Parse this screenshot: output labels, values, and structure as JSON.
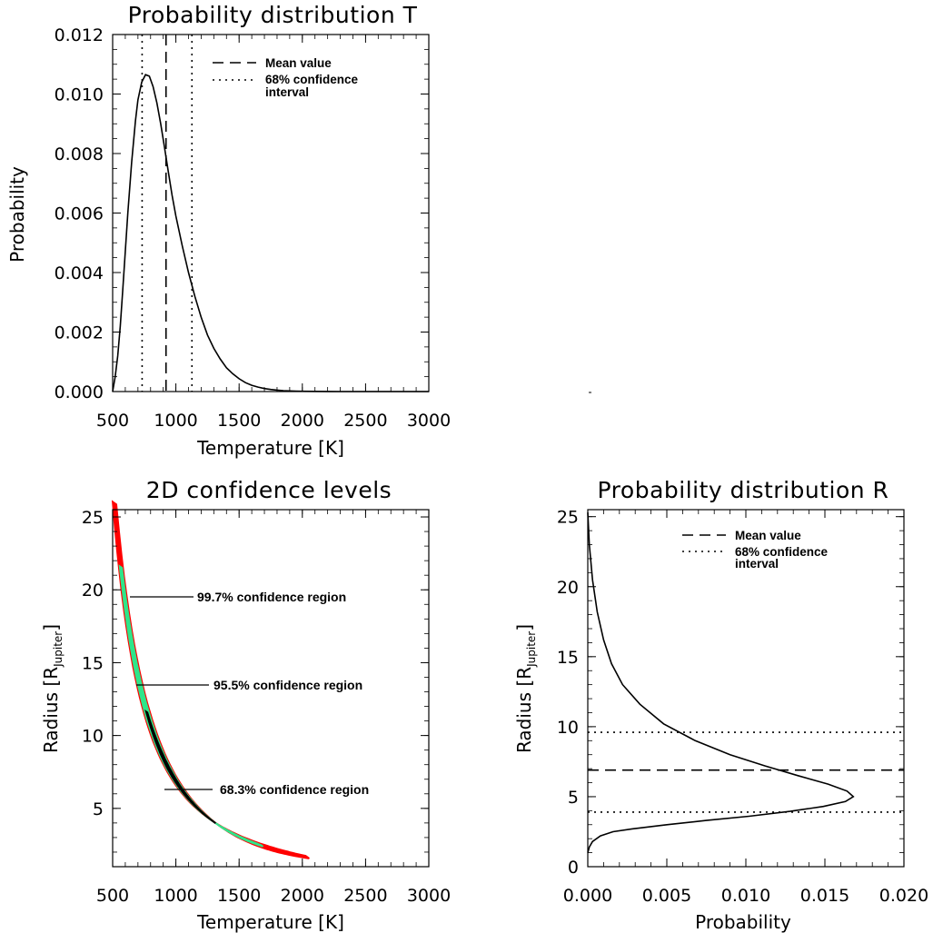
{
  "chart_data": [
    {
      "type": "line",
      "title": "Probability distribution T",
      "xlabel": "Temperature [K]",
      "ylabel": "Probability",
      "xlim": [
        500,
        3000
      ],
      "ylim": [
        0,
        0.012
      ],
      "xticks": [
        "500",
        "1000",
        "1500",
        "2000",
        "2500",
        "3000"
      ],
      "yticks": [
        "0.000",
        "0.002",
        "0.004",
        "0.006",
        "0.008",
        "0.010",
        "0.012"
      ],
      "legend": {
        "position": "top-right",
        "mean_label": "Mean value",
        "ci_label_line1": "68% confidence",
        "ci_label_line2": "interval"
      },
      "series": [
        {
          "x": [
            500,
            520,
            540,
            560,
            580,
            600,
            620,
            650,
            680,
            700,
            730,
            760,
            790,
            820,
            850,
            880,
            910,
            940,
            970,
            1000,
            1050,
            1100,
            1150,
            1200,
            1250,
            1300,
            1350,
            1400,
            1450,
            1500,
            1550,
            1600,
            1650,
            1700,
            1750,
            1800,
            1850,
            1900,
            1950,
            2000,
            2100,
            2200,
            2300,
            2400,
            2500,
            2600,
            2700,
            2800,
            2900,
            3000
          ],
          "y": [
            0.0,
            0.0005,
            0.0012,
            0.0022,
            0.0034,
            0.0047,
            0.006,
            0.0077,
            0.0091,
            0.0098,
            0.0104,
            0.01065,
            0.0106,
            0.01025,
            0.0097,
            0.009,
            0.0082,
            0.0074,
            0.0066,
            0.0059,
            0.0049,
            0.004,
            0.0032,
            0.0025,
            0.0019,
            0.00145,
            0.0011,
            0.0008,
            0.0006,
            0.00043,
            0.0003,
            0.00021,
            0.00015,
            0.0001,
            7e-05,
            5e-05,
            3e-05,
            2e-05,
            1.5e-05,
            1e-05,
            5e-06,
            2e-06,
            1e-06,
            0.0,
            0.0,
            0.0,
            0.0,
            0.0,
            0.0,
            0.0
          ]
        }
      ],
      "mean": 922,
      "ci68": [
        733,
        1127
      ]
    },
    {
      "type": "heatmap",
      "title": "2D confidence levels",
      "xlabel": "Temperature [K]",
      "ylabel_main": "Radius [R",
      "ylabel_sub": "Jupiter",
      "ylabel_end": "]",
      "xlim": [
        500,
        3000
      ],
      "ylim": [
        1,
        25.5
      ],
      "xticks": [
        "500",
        "1000",
        "1500",
        "2000",
        "2500",
        "3000"
      ],
      "yticks": [
        "5",
        "10",
        "15",
        "20",
        "25"
      ],
      "regions": [
        {
          "label": "99.7% confidence region",
          "color": "#ff0000",
          "t_range": [
            515,
            2040
          ]
        },
        {
          "label": "95.5% confidence region",
          "color": "#2ee58a",
          "t_range": [
            565,
            1680
          ]
        },
        {
          "label": "68.3% confidence region",
          "color": "#000000",
          "t_range": [
            770,
            1310
          ]
        }
      ],
      "relation": "R = 24.5 * (530 / T)^2"
    },
    {
      "type": "line",
      "title": "Probability distribution R",
      "xlabel": "Probability",
      "ylabel_main": "Radius [R",
      "ylabel_sub": "Jupiter",
      "ylabel_end": "]",
      "xlim": [
        0,
        0.02
      ],
      "ylim": [
        0,
        25.5
      ],
      "xticks": [
        "0.000",
        "0.005",
        "0.010",
        "0.015",
        "0.020"
      ],
      "yticks": [
        "0",
        "5",
        "10",
        "15",
        "20",
        "25"
      ],
      "legend": {
        "position": "top-right",
        "mean_label": "Mean value",
        "ci_label_line1": "68% confidence",
        "ci_label_line2": "interval"
      },
      "series": [
        {
          "x": [
            0.0,
            0.0001,
            0.0003,
            0.0008,
            0.0016,
            0.0028,
            0.005,
            0.0075,
            0.0102,
            0.0128,
            0.0149,
            0.0163,
            0.0168,
            0.0164,
            0.0152,
            0.0133,
            0.0112,
            0.009,
            0.0068,
            0.0048,
            0.0033,
            0.0022,
            0.0015,
            0.001,
            0.0006,
            0.0003,
            0.0001,
            0.0
          ],
          "y": [
            1.0,
            1.4,
            1.8,
            2.2,
            2.5,
            2.7,
            3.0,
            3.3,
            3.6,
            3.95,
            4.3,
            4.65,
            5.0,
            5.4,
            5.9,
            6.5,
            7.2,
            8.0,
            9.0,
            10.2,
            11.6,
            13.0,
            14.5,
            16.2,
            18.2,
            20.5,
            23.0,
            25.3
          ]
        }
      ],
      "mean": 6.9,
      "ci68": [
        3.9,
        9.6
      ]
    }
  ]
}
